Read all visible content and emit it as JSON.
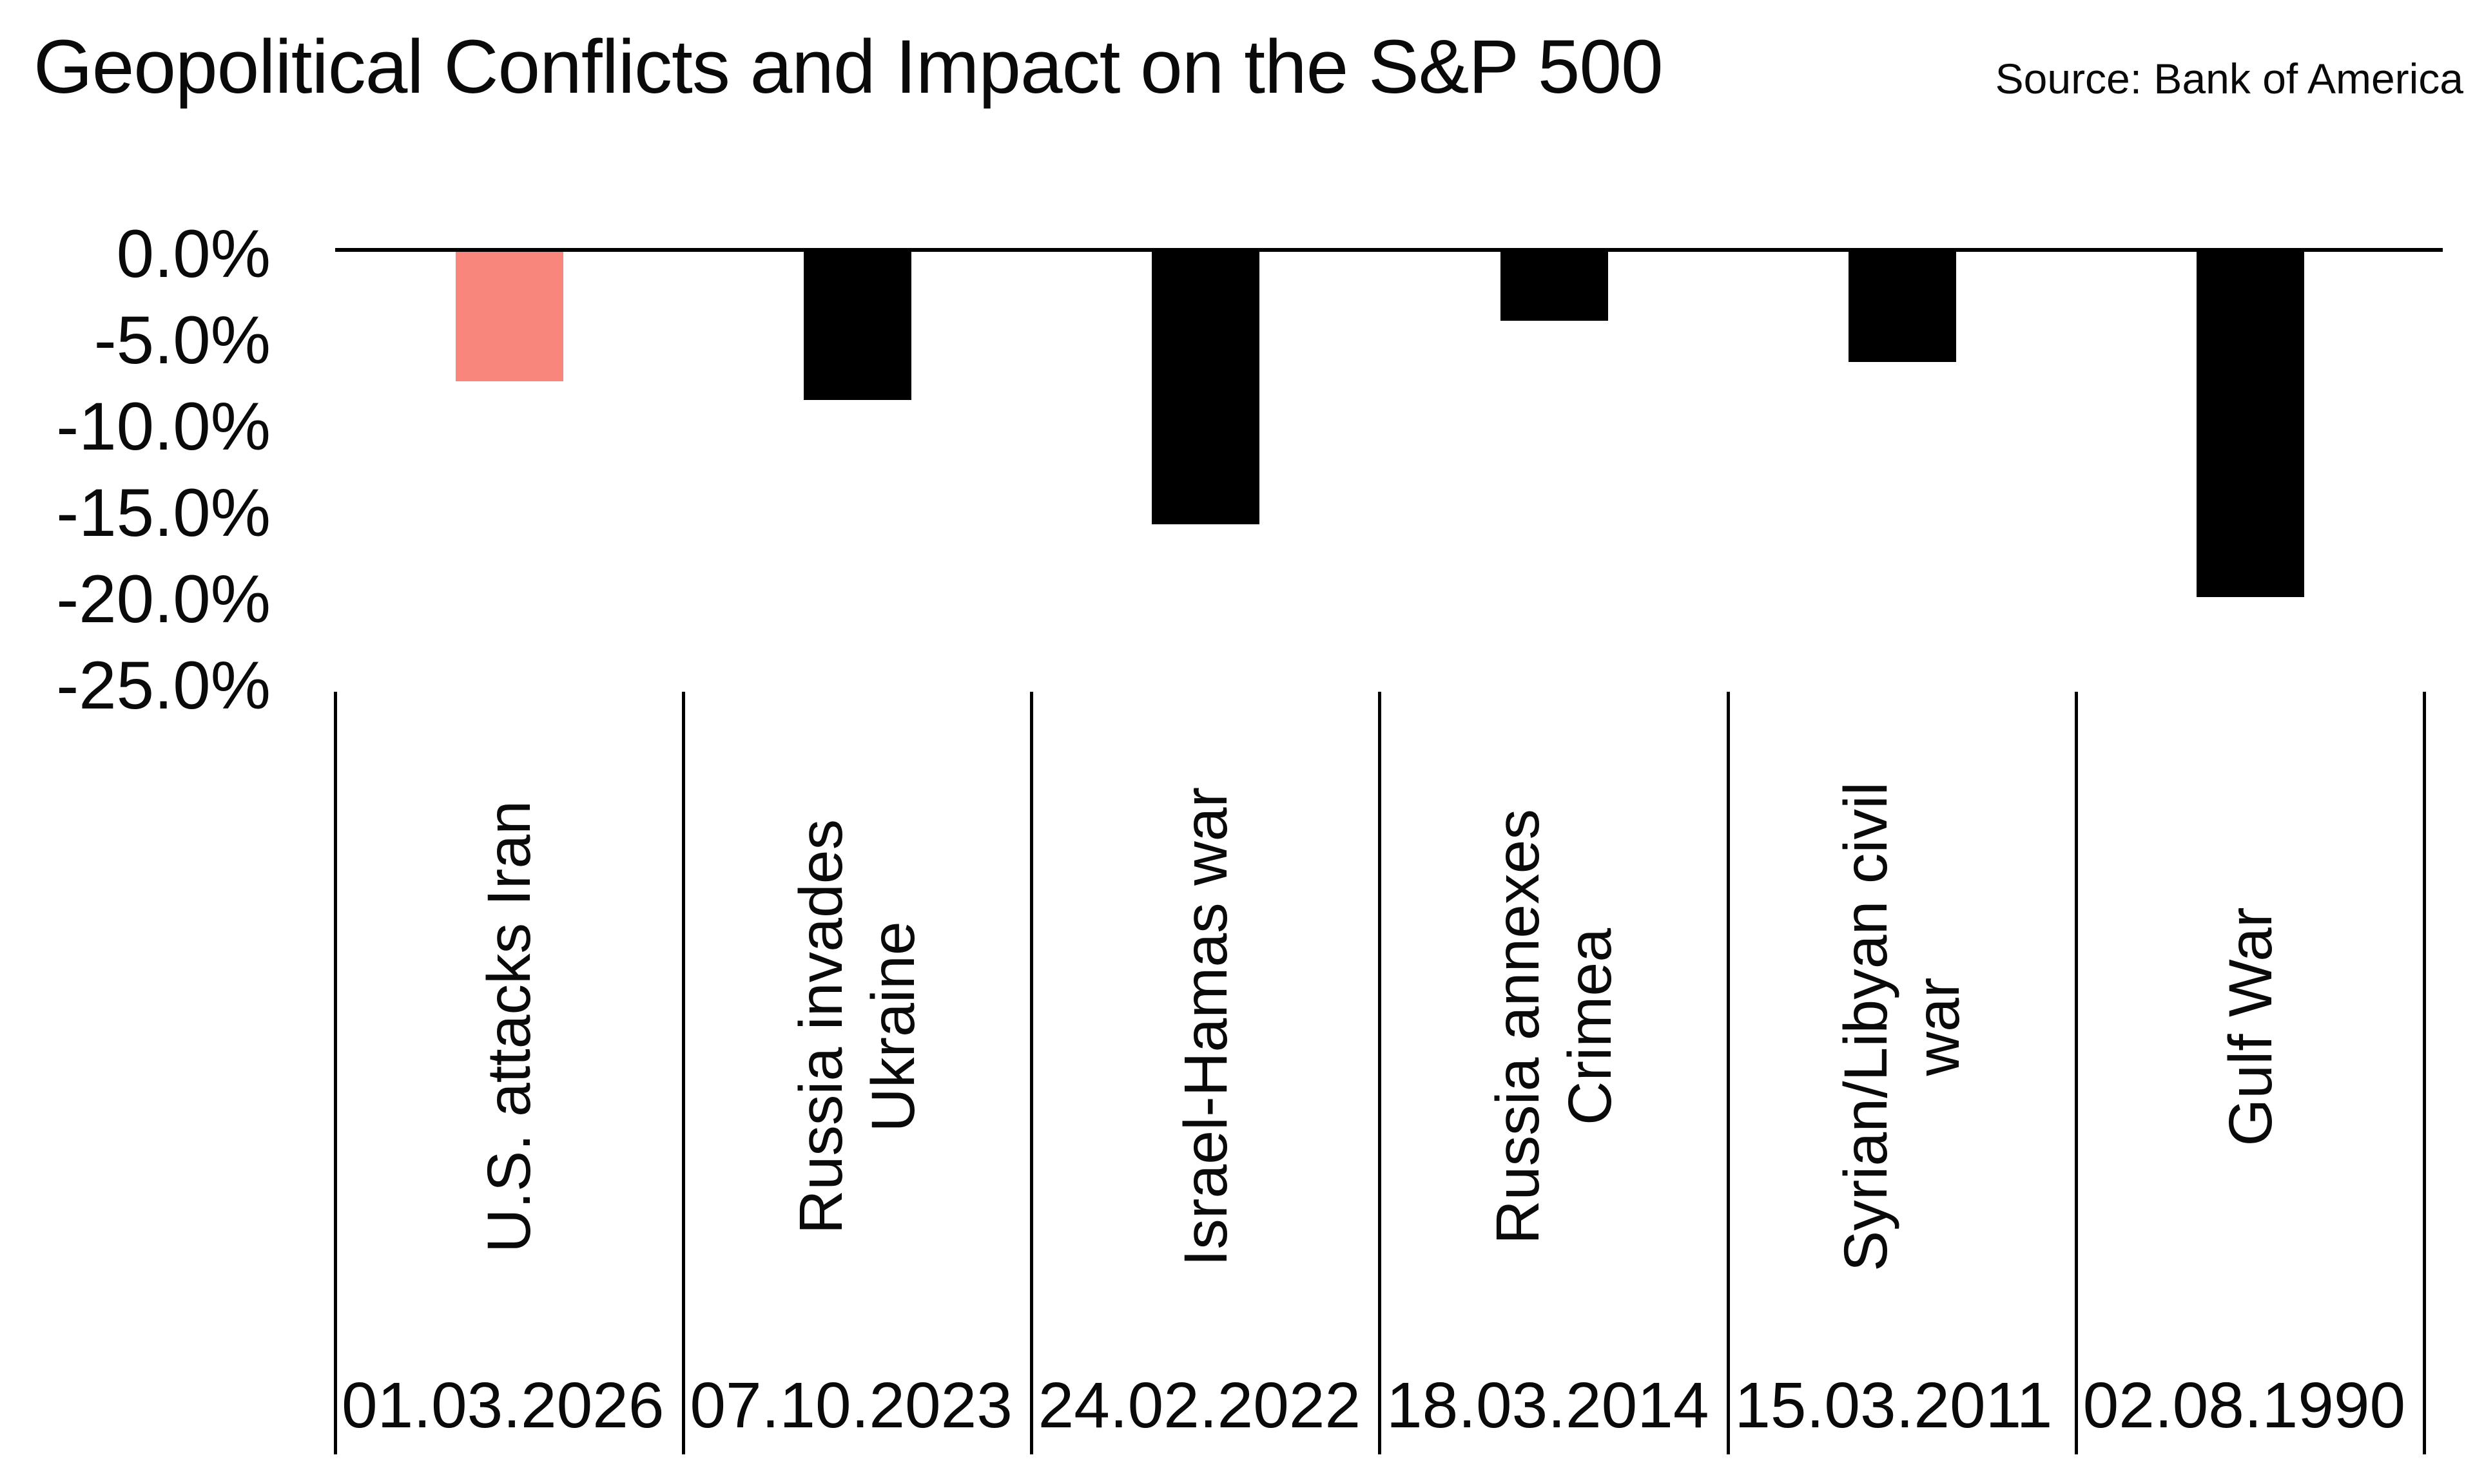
{
  "colors": {
    "background": "#FFFFFF",
    "bar": "#000000",
    "highlight": "#F8867D",
    "axis": "#000000",
    "text": "#0A0A0A"
  },
  "chart_data": {
    "type": "bar",
    "title": "Geopolitical Conflicts and Impact on the S&P 500",
    "source": "Source: Bank of America",
    "xlabel": "",
    "ylabel": "",
    "grid": false,
    "legend": "none",
    "ylim": [
      0,
      -25
    ],
    "y_ticks": [
      "0.0%",
      "-5.0%",
      "-10.0%",
      "-15.0%",
      "-20.0%",
      "-25.0%"
    ],
    "y_tick_values": [
      0,
      -5,
      -10,
      -15,
      -20,
      -25
    ],
    "categories": [
      "U.S. attacks Iran",
      "Russia invades Ukraine",
      "Israel-Hamas war",
      "Russia annexes Crimea",
      "Syrian/Libyan civil war",
      "Gulf War"
    ],
    "category_lines": [
      [
        "U.S. attacks Iran"
      ],
      [
        "Russia invades",
        "Ukraine"
      ],
      [
        "Israel-Hamas war"
      ],
      [
        "Russia annexes",
        "Crimea"
      ],
      [
        "Syrian/Libyan civil",
        "war"
      ],
      [
        "Gulf War"
      ]
    ],
    "dates": [
      "01.03.2026",
      "07.10.2023",
      "24.02.2022",
      "18.03.2014",
      "15.03.2011",
      "02.08.1990"
    ],
    "values_pct": [
      -7.6,
      -8.7,
      -15.9,
      -4.1,
      -6.5,
      -20.1
    ],
    "bar_colors": [
      "highlight",
      "bar",
      "bar",
      "bar",
      "bar",
      "bar"
    ]
  }
}
